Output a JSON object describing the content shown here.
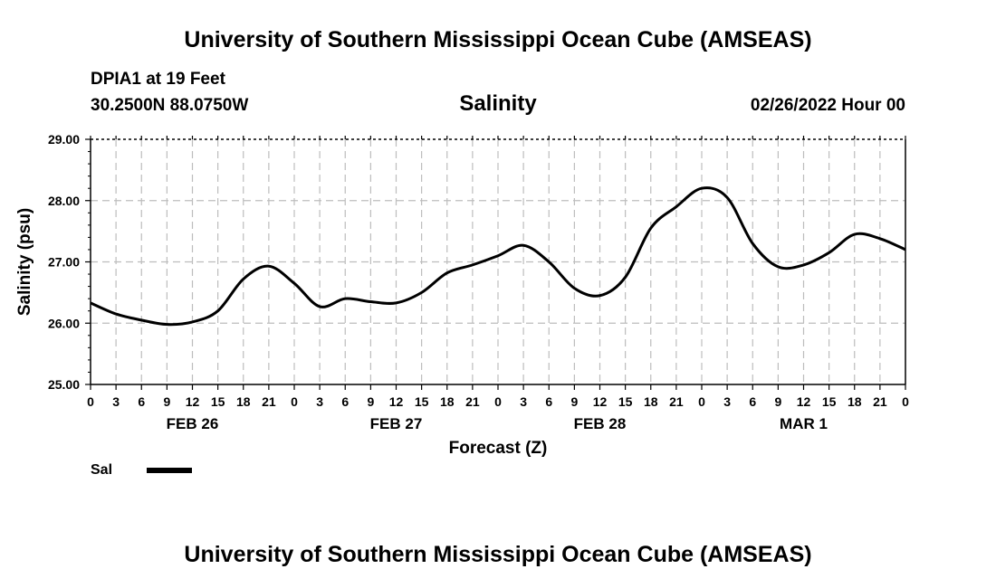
{
  "header": {
    "title_top": "University of Southern Mississippi Ocean Cube (AMSEAS)",
    "title_bottom": "University of Southern Mississippi Ocean Cube (AMSEAS)",
    "station": "DPIA1 at 19 Feet",
    "coords": "30.2500N  88.0750W",
    "datetime": "02/26/2022 Hour 00"
  },
  "legend": {
    "label": "Sal"
  },
  "chart_data": {
    "type": "line",
    "title": "Salinity",
    "xlabel": "Forecast (Z)",
    "ylabel": "Salinity (psu)",
    "ylim": [
      25.0,
      29.0
    ],
    "xlim": [
      0,
      96
    ],
    "grid": true,
    "y_ticks": [
      "25.00",
      "26.00",
      "27.00",
      "28.00",
      "29.00"
    ],
    "x_tick_labels": [
      "0",
      "3",
      "6",
      "9",
      "12",
      "15",
      "18",
      "21",
      "0",
      "3",
      "6",
      "9",
      "12",
      "15",
      "18",
      "21",
      "0",
      "3",
      "6",
      "9",
      "12",
      "15",
      "18",
      "21",
      "0",
      "3",
      "6",
      "9",
      "12",
      "15",
      "18",
      "21",
      "0"
    ],
    "day_labels": [
      {
        "label": "FEB 26",
        "hour": 12
      },
      {
        "label": "FEB 27",
        "hour": 36
      },
      {
        "label": "FEB 28",
        "hour": 60
      },
      {
        "label": "MAR 1",
        "hour": 84
      }
    ],
    "series": [
      {
        "name": "Sal",
        "color": "#000000",
        "x": [
          0,
          3,
          6,
          9,
          12,
          15,
          18,
          21,
          24,
          27,
          30,
          33,
          36,
          39,
          42,
          45,
          48,
          51,
          54,
          57,
          60,
          63,
          66,
          69,
          72,
          75,
          78,
          81,
          84,
          87,
          90,
          93,
          96
        ],
        "values": [
          26.33,
          26.15,
          26.05,
          25.98,
          26.02,
          26.2,
          26.72,
          26.93,
          26.65,
          26.27,
          26.4,
          26.35,
          26.33,
          26.5,
          26.82,
          26.95,
          27.1,
          27.27,
          27.0,
          26.57,
          26.45,
          26.75,
          27.55,
          27.9,
          28.2,
          28.05,
          27.3,
          26.92,
          26.95,
          27.15,
          27.45,
          27.38,
          27.2
        ]
      }
    ]
  }
}
